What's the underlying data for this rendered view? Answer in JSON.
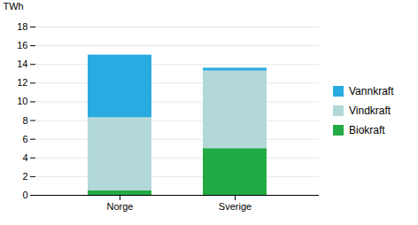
{
  "chart_data": {
    "type": "bar",
    "stacked": true,
    "categories": [
      "Norge",
      "Sverige"
    ],
    "series": [
      {
        "name": "Biokraft",
        "color": "#22AA44",
        "values": [
          0.5,
          5.0
        ]
      },
      {
        "name": "Vindkraft",
        "color": "#B2D8D8",
        "values": [
          7.8,
          8.3
        ]
      },
      {
        "name": "Vannkraft",
        "color": "#29ABE2",
        "values": [
          6.7,
          0.3
        ]
      }
    ],
    "ylabel": "TWh",
    "ylim": [
      0,
      18
    ],
    "yticks": [
      0,
      2,
      4,
      6,
      8,
      10,
      12,
      14,
      16,
      18
    ],
    "grid": true,
    "legend": "right"
  }
}
